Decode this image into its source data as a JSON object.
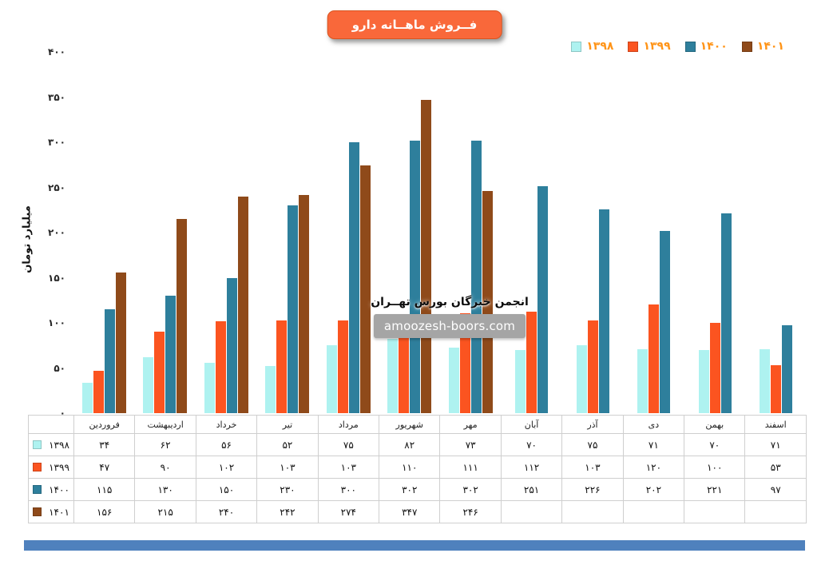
{
  "title": "فــروش ماهــانه دارو",
  "watermark": {
    "line1": "انجمن خبرگان بورس تهــران",
    "line2": "amoozesh-boors.com"
  },
  "colors": {
    "title_box": "#f9683a",
    "footer_bar": "#4f81bd",
    "legend_label": "#ff9418",
    "table_border": "#cfcfcf"
  },
  "chart_data": {
    "type": "bar",
    "title": "فــروش ماهــانه دارو",
    "xlabel": "",
    "ylabel": "میلیارد تومان",
    "ylim": [
      0,
      400
    ],
    "ytick_step": 50,
    "grid": false,
    "legend_position": "top-right",
    "categories": [
      "فروردین",
      "اردیبهشت",
      "خرداد",
      "تیر",
      "مرداد",
      "شهریور",
      "مهر",
      "آبان",
      "آذر",
      "دی",
      "بهمن",
      "اسفند"
    ],
    "series": [
      {
        "name": "۱۳۹۸",
        "color": "#aef2f0",
        "values": [
          34,
          62,
          56,
          52,
          75,
          82,
          73,
          70,
          75,
          71,
          70,
          71
        ]
      },
      {
        "name": "۱۳۹۹",
        "color": "#fb5420",
        "values": [
          47,
          90,
          102,
          103,
          103,
          110,
          111,
          112,
          103,
          120,
          100,
          53
        ]
      },
      {
        "name": "۱۴۰۰",
        "color": "#2e7f9c",
        "values": [
          115,
          130,
          150,
          230,
          300,
          302,
          302,
          251,
          226,
          202,
          221,
          97
        ]
      },
      {
        "name": "۱۴۰۱",
        "color": "#8f4a1a",
        "values": [
          156,
          215,
          240,
          242,
          274,
          347,
          246,
          null,
          null,
          null,
          null,
          null
        ]
      }
    ]
  }
}
